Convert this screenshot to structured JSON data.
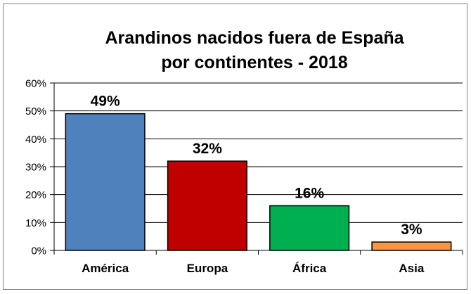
{
  "chart_data": {
    "type": "bar",
    "title_lines": [
      "Arandinos nacidos fuera de España",
      "por continentes - 2018"
    ],
    "categories": [
      "América",
      "Europa",
      "África",
      "Asia"
    ],
    "values": [
      49,
      32,
      16,
      3
    ],
    "value_labels": [
      "49%",
      "32%",
      "16%",
      "3%"
    ],
    "colors": [
      "#4f81bd",
      "#c00000",
      "#00b050",
      "#f79646"
    ],
    "y_ticks": [
      "0%",
      "10%",
      "20%",
      "30%",
      "40%",
      "50%",
      "60%"
    ],
    "ylim": [
      0,
      60
    ],
    "grid": true,
    "legend": "none"
  }
}
